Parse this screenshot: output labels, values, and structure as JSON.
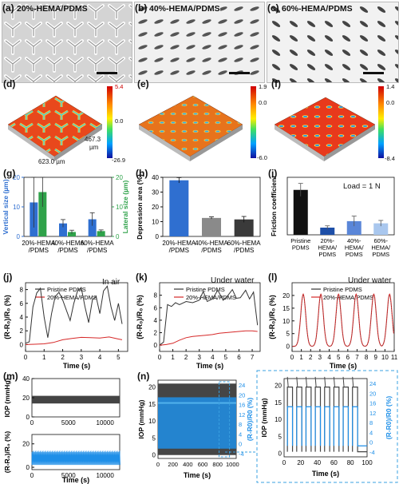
{
  "panels": {
    "a": {
      "label": "(a)",
      "title": "20%-HEMA/PDMS"
    },
    "b": {
      "label": "(b)",
      "title": "40%-HEMA/PDMS"
    },
    "c": {
      "label": "(c)",
      "title": "60%-HEMA/PDMS"
    },
    "d": {
      "label": "(d)",
      "scale": {
        "max": "5.4",
        "mid": "0.0",
        "min": "-26.9"
      },
      "dim_x": "623.0 µm",
      "dim_y": "467.3",
      "dim_y_unit": "µm"
    },
    "e": {
      "label": "(e)",
      "scale": {
        "max": "1.9",
        "mid": "0.0",
        "min": "-6.0"
      }
    },
    "f": {
      "label": "(f)",
      "scale": {
        "max": "1.4",
        "mid": "0.0",
        "min": "-8.4"
      }
    },
    "g": {
      "label": "(g)"
    },
    "h": {
      "label": "(h)"
    },
    "i": {
      "label": "(i)",
      "annotation": "Load = 1 N"
    },
    "j": {
      "label": "(j)",
      "annotation": "In air"
    },
    "k": {
      "label": "(k)",
      "annotation": "Under water"
    },
    "l": {
      "label": "(l)",
      "annotation": "Under water"
    },
    "m": {
      "label": "(m)"
    },
    "n": {
      "label": "(n)"
    }
  },
  "colors": {
    "blue": "#2f6fd0",
    "green": "#2fa24a",
    "black": "#111111",
    "grey": "#8a8a8a",
    "darkgrey": "#3a3a3a",
    "lightblue": "#a9c7ee",
    "red": "#d62828",
    "cyan": "#1e8fe8",
    "dash": "#3aa0e0"
  },
  "chart_data": [
    {
      "id": "g",
      "type": "bar",
      "categories": [
        "20%-HEMA\n/PDMS",
        "40%-HEMA\n/PDMS",
        "60%-HEMA\n/PDMS"
      ],
      "series": [
        {
          "name": "Vertical size (µm)",
          "values": [
            11.5,
            4.4,
            5.8
          ],
          "errors": [
            8.5,
            1.3,
            2.2
          ]
        },
        {
          "name": "Lateral size (µm)",
          "values": [
            15,
            1.5,
            1.8
          ],
          "errors": [
            5,
            0.6,
            0.4
          ]
        }
      ],
      "ylabel": "Vertical size (µm)",
      "y2label": "Lateral size (µm)",
      "ylim": [
        0,
        20
      ],
      "yticks": [
        0,
        10,
        20
      ]
    },
    {
      "id": "h",
      "type": "bar",
      "categories": [
        "20%-HEMA\n/PDMS",
        "40%-HEMA\n/PDMS",
        "60%-HEMA\n/PDMS"
      ],
      "values": [
        38,
        12.5,
        11.5
      ],
      "errors": [
        1.8,
        0.7,
        2.0
      ],
      "ylabel": "Depression area (%)",
      "ylim": [
        0,
        40
      ],
      "yticks": [
        0,
        10,
        20,
        30,
        40
      ]
    },
    {
      "id": "i",
      "type": "bar",
      "categories": [
        "Pristine\nPDMS",
        "20%-\nHEMA/\nPDMS",
        "40%-\nHEMA/\nPDMS",
        "60%-\nHEMA/\nPDMS"
      ],
      "values": [
        1.25,
        0.2,
        0.38,
        0.32
      ],
      "errors": [
        0.18,
        0.05,
        0.14,
        0.08
      ],
      "ylabel": "Friction coefficient",
      "ylim": [
        0,
        1.6
      ]
    },
    {
      "id": "j",
      "type": "line",
      "xlabel": "Time (s)",
      "ylabel": "(R-R₀)/R₀ (%)",
      "xlim": [
        0,
        5.5
      ],
      "xticks": [
        0,
        1,
        2,
        3,
        4,
        5
      ],
      "ylim": [
        -1,
        9
      ],
      "yticks": [
        0,
        2,
        4,
        6,
        8
      ],
      "series": [
        {
          "name": "Pristine PDMS",
          "x": [
            0,
            0.2,
            0.4,
            0.6,
            0.8,
            1.0,
            1.2,
            1.4,
            1.6,
            1.8,
            2.0,
            2.2,
            2.4,
            2.6,
            2.8,
            3.0,
            3.2,
            3.4,
            3.6,
            3.8,
            4.0,
            4.2,
            4.4,
            4.6,
            4.8,
            5.0,
            5.2
          ],
          "y": [
            0.2,
            0.4,
            5.5,
            7.5,
            8.2,
            4.0,
            1.0,
            4.5,
            7.0,
            7.6,
            6.5,
            5.0,
            3.5,
            6.0,
            7.8,
            8.3,
            5.5,
            3.2,
            6.5,
            7.0,
            4.5,
            7.8,
            8.5,
            5.5,
            3.5,
            6.0,
            3.0
          ]
        },
        {
          "name": "20%-HEMA/PDMS",
          "x": [
            0,
            0.5,
            1.0,
            1.5,
            2.0,
            2.5,
            3.0,
            3.5,
            4.0,
            4.5,
            5.0,
            5.2
          ],
          "y": [
            0,
            0.05,
            0.1,
            0.3,
            0.7,
            0.9,
            1.05,
            1.0,
            0.95,
            1.1,
            0.8,
            0.7
          ]
        }
      ]
    },
    {
      "id": "k",
      "type": "line",
      "xlabel": "Time (s)",
      "ylabel": "(R-R₀)/R₀ (%)",
      "xlim": [
        0,
        7.6
      ],
      "xticks": [
        0,
        1,
        2,
        3,
        4,
        5,
        6,
        7
      ],
      "ylim": [
        -1,
        10
      ],
      "yticks": [
        0,
        2,
        4,
        6,
        8
      ],
      "series": [
        {
          "name": "Pristine PDMS",
          "x": [
            0,
            0.3,
            0.6,
            0.9,
            1.2,
            1.5,
            2.0,
            2.5,
            3.0,
            3.3,
            3.6,
            4.0,
            4.4,
            4.8,
            5.1,
            5.5,
            5.8,
            6.1,
            6.5,
            6.8,
            7.1,
            7.4
          ],
          "y": [
            0,
            0.5,
            6.5,
            6.2,
            6.8,
            6.5,
            7.0,
            6.8,
            7.2,
            8.6,
            7.0,
            7.4,
            8.8,
            7.2,
            7.8,
            8.9,
            7.5,
            7.6,
            8.8,
            7.4,
            8.5,
            3.2
          ]
        },
        {
          "name": "20%-HEMA/PDMS",
          "x": [
            0,
            0.5,
            1.0,
            1.5,
            2.0,
            2.5,
            3.0,
            3.5,
            4.0,
            4.5,
            5.0,
            5.5,
            6.0,
            6.5,
            7.0,
            7.4
          ],
          "y": [
            0,
            0.1,
            0.3,
            0.8,
            1.2,
            1.4,
            1.5,
            1.6,
            1.7,
            1.9,
            2.0,
            2.1,
            2.2,
            2.3,
            2.3,
            2.2
          ]
        }
      ]
    },
    {
      "id": "l",
      "type": "line",
      "xlabel": "Time (s)",
      "ylabel": "(R-R₀)/R₀ (%)",
      "xlim": [
        0,
        11
      ],
      "xticks": [
        0,
        1,
        2,
        3,
        4,
        5,
        6,
        7,
        8,
        9,
        10,
        11
      ],
      "ylim": [
        -2,
        25
      ],
      "yticks": [
        0,
        5,
        10,
        15,
        20
      ],
      "series": [
        {
          "name": "Pristine PDMS"
        },
        {
          "name": "20%-HEMA/PDMS",
          "peaks": [
            1.2,
            3.1,
            5.0,
            6.9,
            8.8,
            10.5
          ],
          "amplitude": 20.5
        }
      ]
    },
    {
      "id": "m",
      "type": "line",
      "xlabel": "Time (s)",
      "xticks": [
        0,
        5000,
        10000
      ],
      "top": {
        "ylabel": "IOP (mmHg)",
        "yticks": [
          0,
          20,
          40
        ],
        "band": [
          14,
          22
        ]
      },
      "bottom": {
        "ylabel": "(R-R₀)/R₀ (%)",
        "yticks": [
          0,
          20
        ],
        "band": [
          2,
          13
        ]
      }
    },
    {
      "id": "n",
      "type": "line",
      "xlabel": "Time (s)",
      "xticks": [
        0,
        200,
        400,
        600,
        800,
        1000
      ],
      "ylabel": "IOP (mmHg)",
      "yticks": [
        0,
        5,
        10,
        15,
        20
      ],
      "y2label": "(R-R0)/R0 (%)",
      "y2ticks": [
        -4,
        0,
        4,
        8,
        12,
        16,
        20,
        24
      ],
      "inset": {
        "xlabel": "Time (s)",
        "xticks": [
          0,
          20,
          40,
          60,
          80,
          100
        ],
        "ylabel": "IOP (mmHg)",
        "yticks": [
          0,
          5,
          10,
          15,
          20
        ],
        "y2label": "(R-R0)/R0 (%)",
        "y2ticks": [
          -4,
          0,
          4,
          8,
          12,
          16,
          20,
          24
        ],
        "pulses": 8
      }
    }
  ]
}
